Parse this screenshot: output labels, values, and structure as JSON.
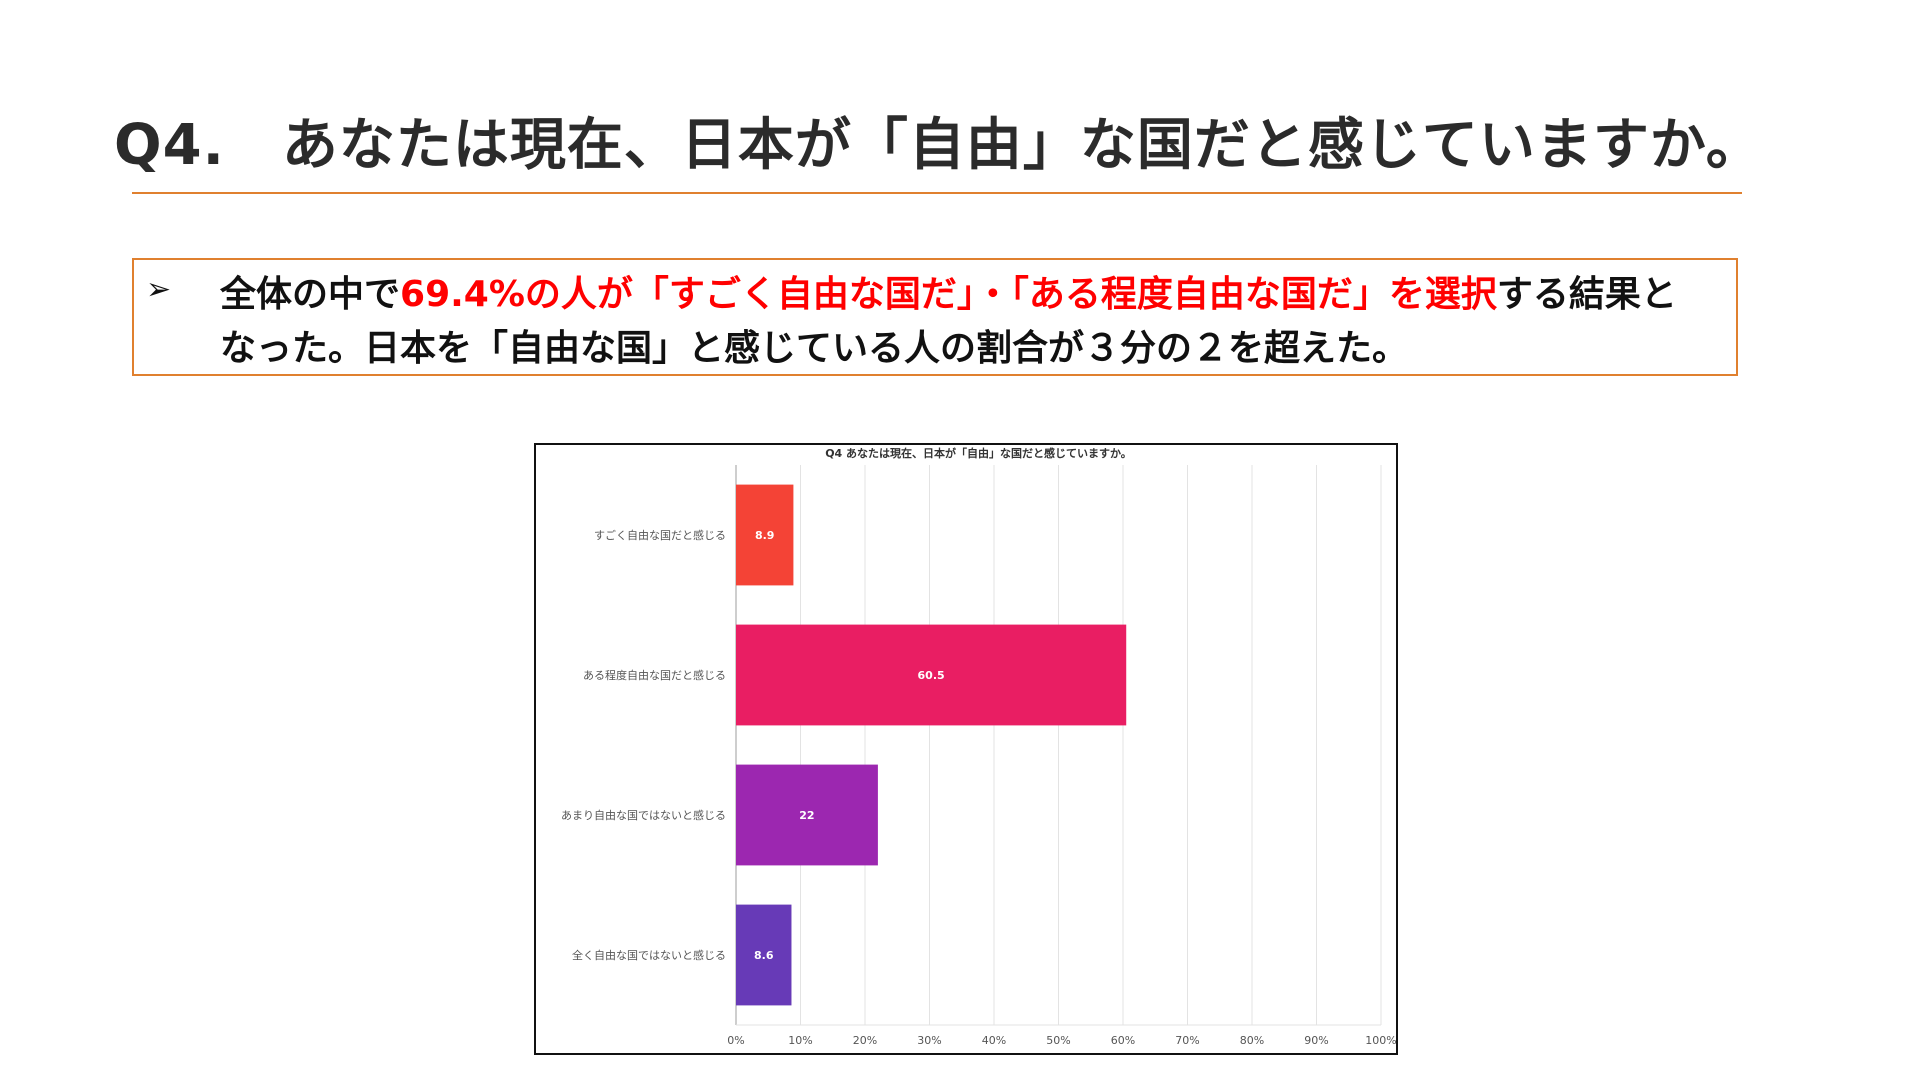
{
  "slide": {
    "title": "Q4.　あなたは現在、日本が「自由」な国だと感じていますか。",
    "bullet": "➢",
    "summary": {
      "line1_part1": "全体の中で",
      "line1_highlight": "69.4%の人が「すごく自由な国だ」・「ある程度自由な国だ」を選択",
      "line1_part2": "する結果と",
      "line2": "なった。日本を「自由な国」と感じている人の割合が３分の２を超えた。"
    }
  },
  "chart_data": {
    "type": "bar",
    "orientation": "horizontal",
    "title": "Q4 あなたは現在、日本が「自由」な国だと感じていますか。",
    "categories": [
      "すごく自由な国だと感じる",
      "ある程度自由な国だと感じる",
      "あまり自由な国ではないと感じる",
      "全く自由な国ではないと感じる"
    ],
    "values": [
      8.9,
      60.5,
      22,
      8.6
    ],
    "value_labels": [
      "8.9",
      "60.5",
      "22",
      "8.6"
    ],
    "colors": [
      "#f44336",
      "#e91e63",
      "#9c27b0",
      "#673ab7"
    ],
    "xlim": [
      0,
      100
    ],
    "x_ticks": [
      "0%",
      "10%",
      "20%",
      "30%",
      "40%",
      "50%",
      "60%",
      "70%",
      "80%",
      "90%",
      "100%"
    ],
    "grid": true,
    "legend": "none"
  }
}
